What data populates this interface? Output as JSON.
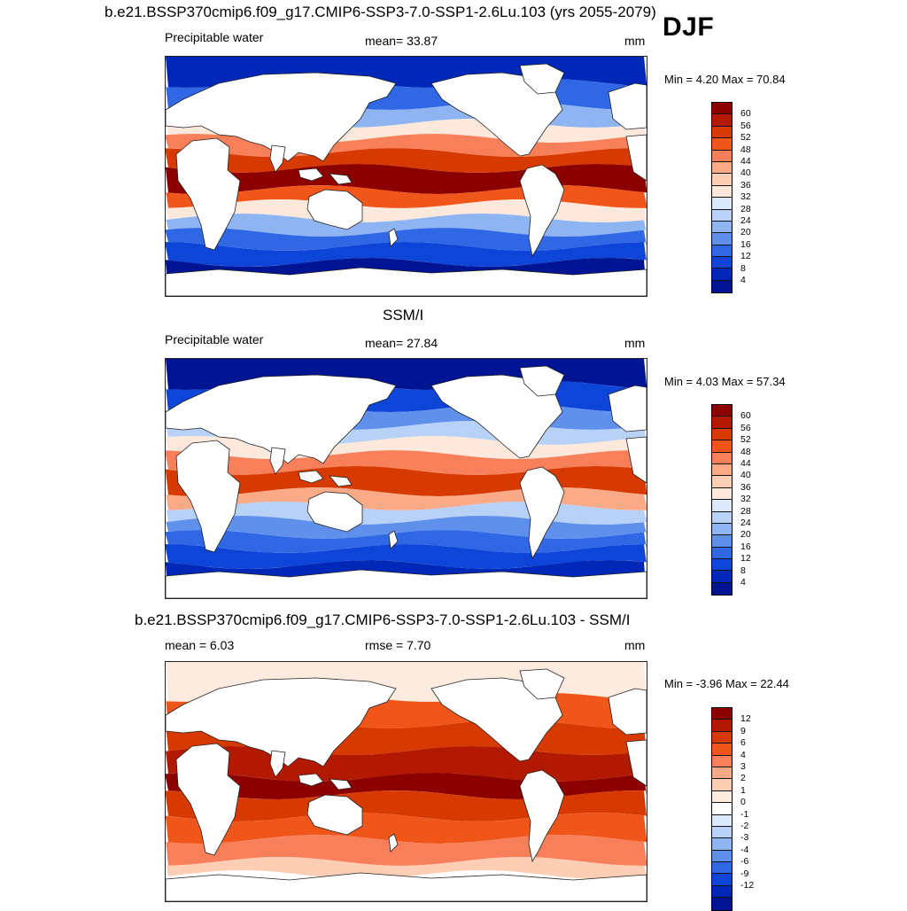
{
  "figure": {
    "season": "DJF",
    "panels": [
      {
        "title": "b.e21.BSSP370cmip6.f09_g17.CMIP6-SSP3-7.0-SSP1-2.6Lu.103 (yrs 2055-2079)",
        "left_label": "Precipitable water",
        "center_label": "mean=  33.87",
        "right_label": "mm",
        "minmax": "Min =   4.20 Max =  70.84",
        "palette": "abs",
        "colorbar_levels": [
          "60",
          "56",
          "52",
          "48",
          "44",
          "40",
          "36",
          "32",
          "28",
          "24",
          "20",
          "16",
          "12",
          "8",
          "4"
        ]
      },
      {
        "title": "SSM/I",
        "left_label": "Precipitable water",
        "center_label": "mean=  27.84",
        "right_label": "mm",
        "minmax": "Min =   4.03 Max =  57.34",
        "palette": "abs",
        "colorbar_levels": [
          "60",
          "56",
          "52",
          "48",
          "44",
          "40",
          "36",
          "32",
          "28",
          "24",
          "20",
          "16",
          "12",
          "8",
          "4"
        ]
      },
      {
        "title": "b.e21.BSSP370cmip6.f09_g17.CMIP6-SSP3-7.0-SSP1-2.6Lu.103 - SSM/I",
        "left_label": "mean =   6.03",
        "center_label": "rmse =   7.70",
        "right_label": "mm",
        "minmax": "Min =  -3.96 Max =  22.44",
        "palette": "diff",
        "colorbar_levels": [
          "12",
          "9",
          "6",
          "4",
          "3",
          "2",
          "1",
          "0",
          "-1",
          "-2",
          "-3",
          "-4",
          "-6",
          "-9",
          "-12"
        ]
      }
    ]
  },
  "colors": {
    "abs": [
      "#8c0000",
      "#b31900",
      "#d63a00",
      "#f0561a",
      "#f7805a",
      "#fbaa88",
      "#fdcdb4",
      "#fde9dc",
      "#dbe9fb",
      "#b8d2f7",
      "#8fb4f2",
      "#5f90ec",
      "#2f67e4",
      "#0d45d8",
      "#0028b8",
      "#001494"
    ],
    "diff": [
      "#8c0000",
      "#b31900",
      "#d63a00",
      "#f0561a",
      "#f7805a",
      "#fbaa88",
      "#fdcdb4",
      "#fdebe0",
      "#ffffff",
      "#dbe9fb",
      "#b8d2f7",
      "#8fb4f2",
      "#5f90ec",
      "#2f67e4",
      "#0d45d8",
      "#0028b8",
      "#001494"
    ]
  }
}
